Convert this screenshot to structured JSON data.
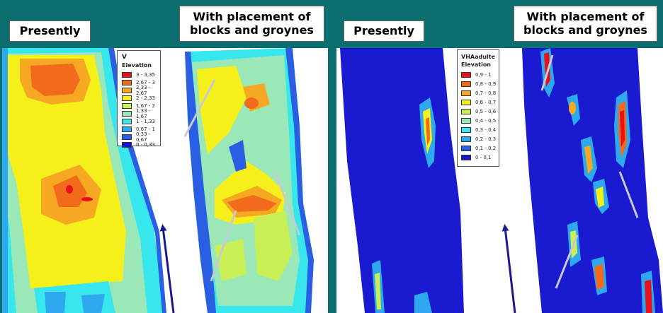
{
  "labels": {
    "left_presently": "Presently",
    "left_with": "With placement of blocks and groynes",
    "right_presently": "Presently",
    "right_with": "With placement of blocks and groynes"
  },
  "legend_v": {
    "title1": "V",
    "title2": "Elevation",
    "items": [
      {
        "label": "3 - 3,35",
        "color": "#e8101a"
      },
      {
        "label": "2,67 - 3",
        "color": "#f26b1c"
      },
      {
        "label": "2,33 - 2,67",
        "color": "#f7a823"
      },
      {
        "label": "2 - 2,33",
        "color": "#f5ef1a"
      },
      {
        "label": "1,67 - 2",
        "color": "#c8ef56"
      },
      {
        "label": "1,33 - 1,67",
        "color": "#9ae8b8"
      },
      {
        "label": "1 - 1,33",
        "color": "#38e6ee"
      },
      {
        "label": "0,67 - 1",
        "color": "#2ea8ee"
      },
      {
        "label": "0,33 - 0,67",
        "color": "#2a5fe4"
      },
      {
        "label": "0 - 0,33",
        "color": "#1515cc"
      }
    ]
  },
  "legend_vha": {
    "title1": "VHAadulte",
    "title2": "Elevation",
    "items": [
      {
        "label": "0,9 - 1",
        "color": "#e8101a"
      },
      {
        "label": "0,8 - 0,9",
        "color": "#f26b1c"
      },
      {
        "label": "0,7 - 0,8",
        "color": "#f7a823"
      },
      {
        "label": "0,6 - 0,7",
        "color": "#f5ef1a"
      },
      {
        "label": "0,5 - 0,6",
        "color": "#c8ef56"
      },
      {
        "label": "0,4 - 0,5",
        "color": "#9ae8b8"
      },
      {
        "label": "0,3 - 0,4",
        "color": "#38e6ee"
      },
      {
        "label": "0,2 - 0,3",
        "color": "#2ea8ee"
      },
      {
        "label": "0,1 - 0,2",
        "color": "#2a5fe4"
      },
      {
        "label": "0 - 0,1",
        "color": "#1515cc"
      }
    ]
  }
}
